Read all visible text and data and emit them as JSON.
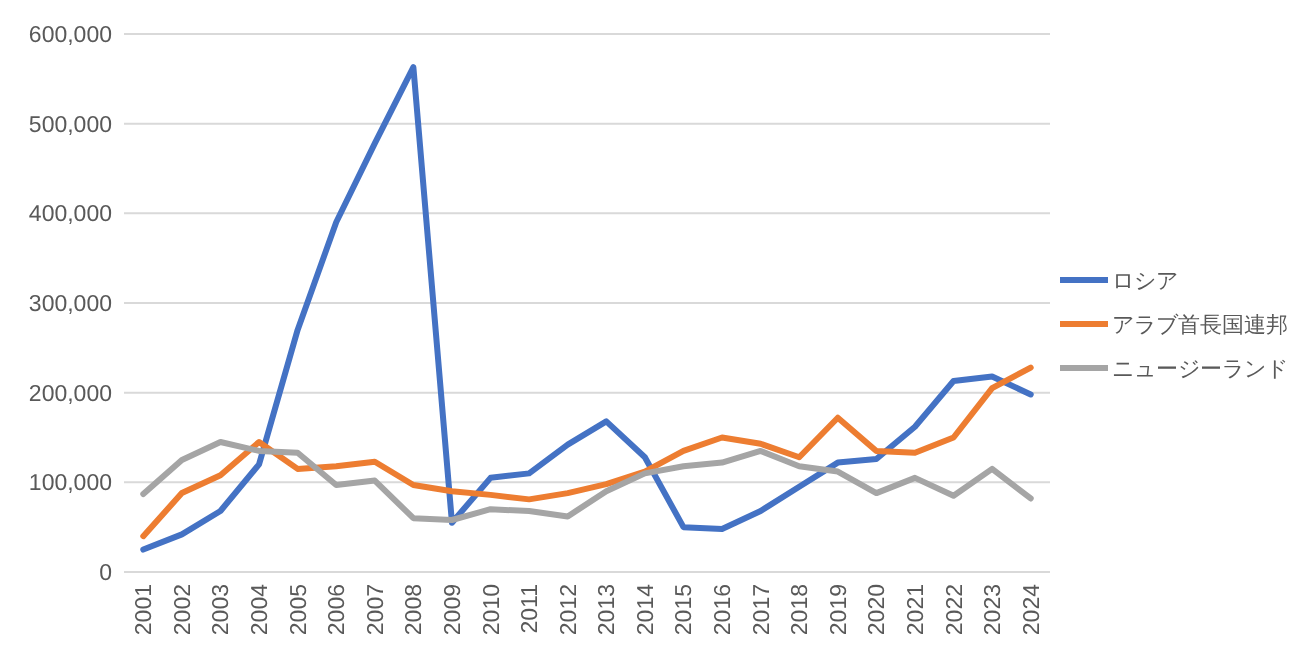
{
  "chart_data": {
    "type": "line",
    "categories": [
      "2001",
      "2002",
      "2003",
      "2004",
      "2005",
      "2006",
      "2007",
      "2008",
      "2009",
      "2010",
      "2011",
      "2012",
      "2013",
      "2014",
      "2015",
      "2016",
      "2017",
      "2018",
      "2019",
      "2020",
      "2021",
      "2022",
      "2023",
      "2024"
    ],
    "series": [
      {
        "name": "ロシア",
        "color": "#4472c4",
        "values": [
          25000,
          42000,
          68000,
          120000,
          270000,
          390000,
          478000,
          563000,
          55000,
          105000,
          110000,
          142000,
          168000,
          128000,
          50000,
          48000,
          68000,
          95000,
          122000,
          126000,
          162000,
          213000,
          218000,
          198000
        ]
      },
      {
        "name": "アラブ首長国連邦",
        "color": "#ed7d31",
        "values": [
          40000,
          88000,
          108000,
          145000,
          115000,
          118000,
          123000,
          97000,
          90000,
          86000,
          81000,
          88000,
          98000,
          112000,
          135000,
          150000,
          143000,
          128000,
          172000,
          135000,
          133000,
          150000,
          205000,
          228000
        ]
      },
      {
        "name": "ニュージーランド",
        "color": "#a5a5a5",
        "values": [
          87000,
          125000,
          145000,
          135000,
          133000,
          97000,
          102000,
          60000,
          58000,
          70000,
          68000,
          62000,
          90000,
          110000,
          118000,
          122000,
          135000,
          118000,
          112000,
          88000,
          105000,
          85000,
          115000,
          82000
        ]
      }
    ],
    "ylim": [
      0,
      600000
    ],
    "yticks": [
      {
        "value": 0,
        "label": "0"
      },
      {
        "value": 100000,
        "label": "100,000"
      },
      {
        "value": 200000,
        "label": "200,000"
      },
      {
        "value": 300000,
        "label": "300,000"
      },
      {
        "value": 400000,
        "label": "400,000"
      },
      {
        "value": 500000,
        "label": "500,000"
      },
      {
        "value": 600000,
        "label": "600,000"
      }
    ],
    "grid": "y",
    "legend": "right",
    "marker": "none",
    "line_style": "solid"
  }
}
